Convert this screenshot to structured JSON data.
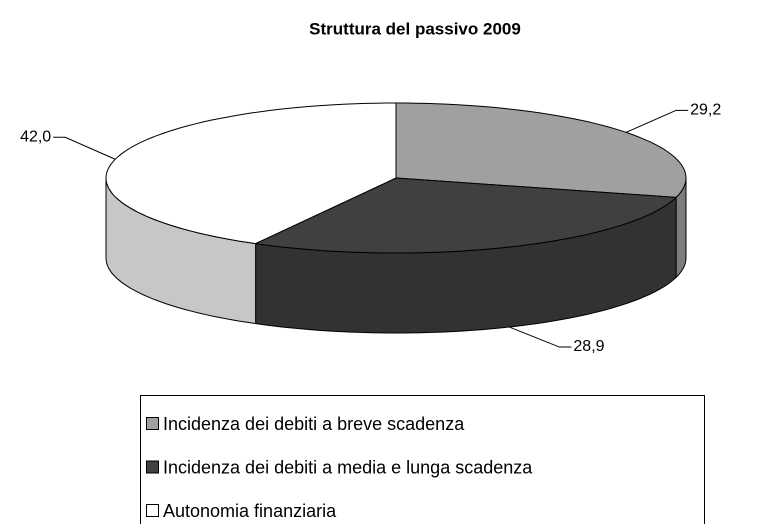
{
  "chart_data": {
    "type": "pie",
    "title": "Struttura del passivo 2009",
    "categories": [
      "Incidenza dei debiti a breve scadenza",
      "Incidenza dei debiti a media e lunga scadenza",
      "Autonomia finanziaria"
    ],
    "values": [
      29.2,
      28.9,
      42.0
    ],
    "value_labels": [
      "29,2",
      "28,9",
      "42,0"
    ],
    "colors": [
      "#a0a0a0",
      "#404040",
      "#ffffff"
    ]
  }
}
